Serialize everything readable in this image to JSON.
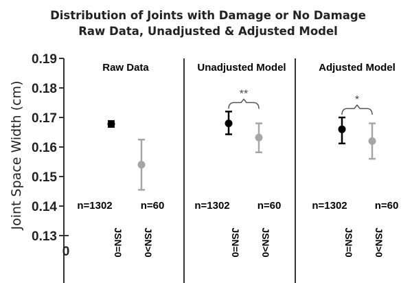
{
  "chart_data": {
    "type": "scatter",
    "title": "Distribution of Joints with Damage or No Damage",
    "subtitle": "Raw Data, Unadjusted & Adjusted Model",
    "ylabel": "Joint Space Width (cm)",
    "ylim": [
      0.13,
      0.19
    ],
    "yticks": [
      "0.19",
      "0.18",
      "0.17",
      "0.16",
      "0.15",
      "0.14",
      "0.13"
    ],
    "y_origin_label": "0",
    "categories": [
      "JSN=0",
      "JSN>0"
    ],
    "colors": {
      "JSN=0": "#000000",
      "JSN>0": "#a6a6a6"
    },
    "panels": [
      {
        "name": "Raw Data",
        "counts": [
          "n=1302",
          "n=60"
        ],
        "significance": "",
        "points": [
          {
            "category": "JSN=0",
            "mean": 0.1678,
            "lower": 0.1668,
            "upper": 0.1688
          },
          {
            "category": "JSN>0",
            "mean": 0.154,
            "lower": 0.1455,
            "upper": 0.1625
          }
        ]
      },
      {
        "name": "Unadjusted Model",
        "counts": [
          "n=1302",
          "n=60"
        ],
        "significance": "**",
        "points": [
          {
            "category": "JSN=0",
            "mean": 0.168,
            "lower": 0.1643,
            "upper": 0.172
          },
          {
            "category": "JSN>0",
            "mean": 0.1632,
            "lower": 0.1582,
            "upper": 0.168
          }
        ]
      },
      {
        "name": "Adjusted Model",
        "counts": [
          "n=1302",
          "n=60"
        ],
        "significance": "*",
        "points": [
          {
            "category": "JSN=0",
            "mean": 0.166,
            "lower": 0.1612,
            "upper": 0.17
          },
          {
            "category": "JSN>0",
            "mean": 0.162,
            "lower": 0.156,
            "upper": 0.168
          }
        ]
      }
    ]
  }
}
